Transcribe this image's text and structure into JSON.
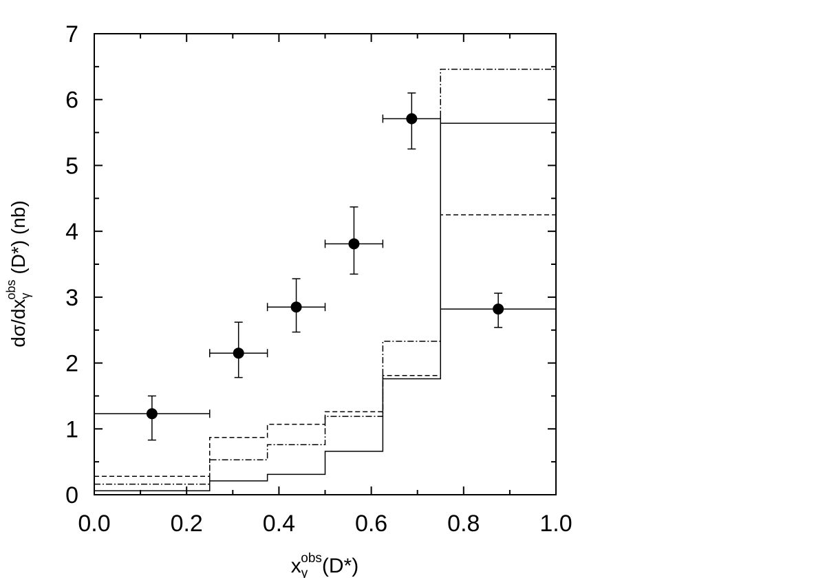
{
  "chart_data": {
    "type": "scatter",
    "title": "",
    "xlabel": {
      "base": "x",
      "sub": "γ",
      "sup": "obs",
      "suffix": "(D*)"
    },
    "ylabel": {
      "prefix": "dσ/dx",
      "sub": "γ",
      "sup": "obs",
      "suffix": " (D*) (nb)"
    },
    "xlim": [
      0.0,
      1.0
    ],
    "ylim": [
      0,
      7
    ],
    "x_ticks": [
      "0.0",
      "0.2",
      "0.4",
      "0.6",
      "0.8",
      "1.0"
    ],
    "y_ticks": [
      "0",
      "1",
      "2",
      "3",
      "4",
      "5",
      "6",
      "7"
    ],
    "bin_edges": [
      0.0,
      0.25,
      0.375,
      0.5,
      0.625,
      0.75,
      1.0
    ],
    "data_points": [
      {
        "x": 0.125,
        "y": 1.23,
        "xerr": 0.125,
        "yerr_up": 0.27,
        "yerr_down": 0.4
      },
      {
        "x": 0.3125,
        "y": 2.15,
        "xerr": 0.0625,
        "yerr_up": 0.47,
        "yerr_down": 0.37
      },
      {
        "x": 0.4375,
        "y": 2.85,
        "xerr": 0.0625,
        "yerr_up": 0.43,
        "yerr_down": 0.38
      },
      {
        "x": 0.5625,
        "y": 3.81,
        "xerr": 0.0625,
        "yerr_up": 0.56,
        "yerr_down": 0.46
      },
      {
        "x": 0.6875,
        "y": 5.71,
        "xerr": 0.0625,
        "yerr_up": 0.39,
        "yerr_down": 0.46
      },
      {
        "x": 0.875,
        "y": 2.82,
        "xerr": 0.125,
        "yerr_up": 0.24,
        "yerr_down": 0.28
      }
    ],
    "histograms": [
      {
        "style": "solid",
        "values": [
          0.06,
          0.21,
          0.31,
          0.66,
          1.76,
          5.64
        ]
      },
      {
        "style": "dashed",
        "values": [
          0.28,
          0.87,
          1.07,
          1.26,
          1.81,
          4.25
        ]
      },
      {
        "style": "dashdot",
        "values": [
          0.16,
          0.53,
          0.76,
          1.19,
          2.33,
          6.46
        ]
      }
    ],
    "grid": false,
    "colors": {
      "marks": "#000000",
      "background": "#ffffff"
    }
  }
}
